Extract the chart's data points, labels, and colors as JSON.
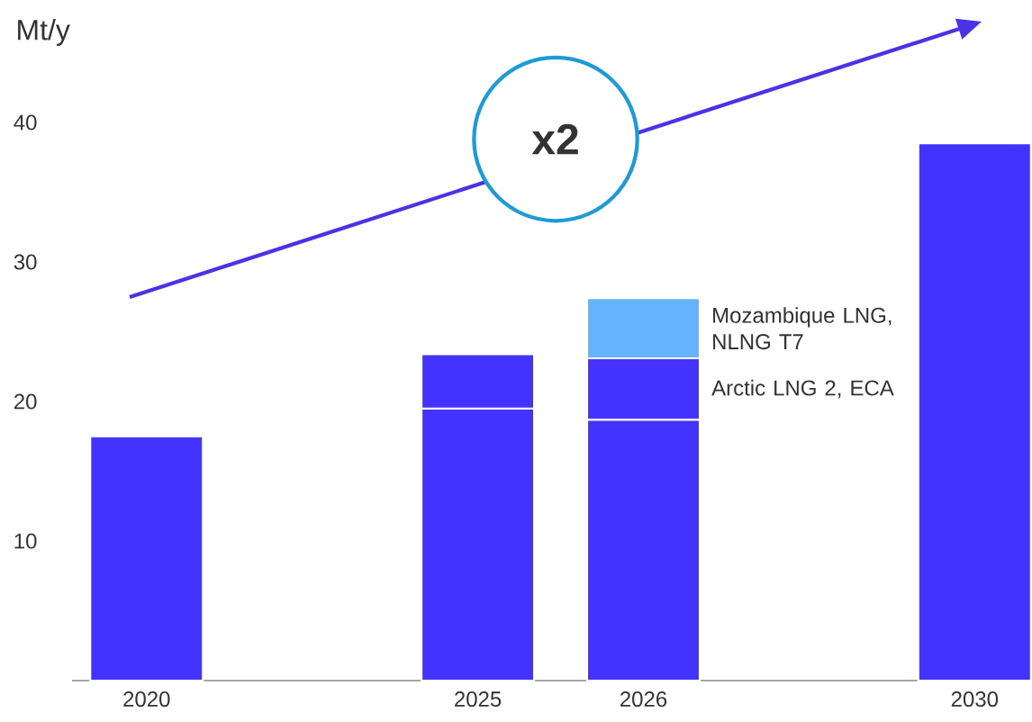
{
  "chart_data": {
    "type": "bar",
    "stacked": true,
    "ylabel": "Mt/y",
    "categories": [
      "2020",
      null,
      "2025",
      "2026",
      null,
      "2030"
    ],
    "series": [
      {
        "color": "#4433ff",
        "values": [
          17.5,
          null,
          19.5,
          18.7,
          null,
          38.5
        ]
      },
      {
        "name": "Arctic LNG 2, ECA",
        "color": "#4433ff",
        "values": [
          null,
          null,
          3.9,
          4.4,
          null,
          null
        ]
      },
      {
        "name": "Mozambique LNG, NLNG T7",
        "color": "#66b3ff",
        "values": [
          null,
          null,
          null,
          4.3,
          null,
          null
        ]
      }
    ],
    "ylim": [
      0,
      40
    ],
    "yticks": [
      10,
      20,
      30,
      40
    ],
    "annotations": [
      "x2"
    ]
  }
}
